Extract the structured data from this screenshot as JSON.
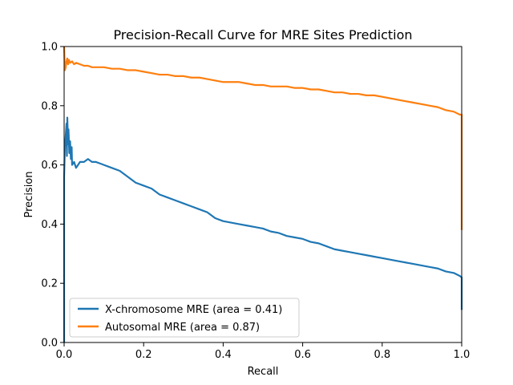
{
  "chart_data": {
    "type": "line",
    "title": "Precision-Recall Curve for MRE Sites Prediction",
    "xlabel": "Recall",
    "ylabel": "Precision",
    "xlim": [
      0,
      1
    ],
    "ylim": [
      0,
      1
    ],
    "xticks": [
      "0.0",
      "0.2",
      "0.4",
      "0.6",
      "0.8",
      "1.0"
    ],
    "yticks": [
      "0.0",
      "0.2",
      "0.4",
      "0.6",
      "0.8",
      "1.0"
    ],
    "grid": false,
    "legend_position": "lower-left",
    "series": [
      {
        "name": "X-chromosome MRE (area = 0.41)",
        "color": "#1f77b4",
        "points": [
          [
            0.0,
            0.0
          ],
          [
            0.0,
            0.56
          ],
          [
            0.002,
            0.66
          ],
          [
            0.004,
            0.7
          ],
          [
            0.006,
            0.74
          ],
          [
            0.007,
            0.63
          ],
          [
            0.008,
            0.76
          ],
          [
            0.01,
            0.67
          ],
          [
            0.011,
            0.72
          ],
          [
            0.013,
            0.64
          ],
          [
            0.015,
            0.68
          ],
          [
            0.017,
            0.62
          ],
          [
            0.019,
            0.66
          ],
          [
            0.02,
            0.6
          ],
          [
            0.025,
            0.61
          ],
          [
            0.03,
            0.59
          ],
          [
            0.035,
            0.6
          ],
          [
            0.04,
            0.61
          ],
          [
            0.05,
            0.61
          ],
          [
            0.06,
            0.62
          ],
          [
            0.07,
            0.61
          ],
          [
            0.08,
            0.61
          ],
          [
            0.09,
            0.605
          ],
          [
            0.1,
            0.6
          ],
          [
            0.12,
            0.59
          ],
          [
            0.14,
            0.58
          ],
          [
            0.16,
            0.56
          ],
          [
            0.18,
            0.54
          ],
          [
            0.2,
            0.53
          ],
          [
            0.22,
            0.52
          ],
          [
            0.24,
            0.5
          ],
          [
            0.26,
            0.49
          ],
          [
            0.28,
            0.48
          ],
          [
            0.3,
            0.47
          ],
          [
            0.32,
            0.46
          ],
          [
            0.34,
            0.45
          ],
          [
            0.36,
            0.44
          ],
          [
            0.38,
            0.42
          ],
          [
            0.4,
            0.41
          ],
          [
            0.42,
            0.405
          ],
          [
            0.44,
            0.4
          ],
          [
            0.46,
            0.395
          ],
          [
            0.48,
            0.39
          ],
          [
            0.5,
            0.385
          ],
          [
            0.52,
            0.375
          ],
          [
            0.54,
            0.37
          ],
          [
            0.56,
            0.36
          ],
          [
            0.58,
            0.355
          ],
          [
            0.6,
            0.35
          ],
          [
            0.62,
            0.34
          ],
          [
            0.64,
            0.335
          ],
          [
            0.66,
            0.325
          ],
          [
            0.68,
            0.315
          ],
          [
            0.7,
            0.31
          ],
          [
            0.72,
            0.305
          ],
          [
            0.74,
            0.3
          ],
          [
            0.76,
            0.295
          ],
          [
            0.78,
            0.29
          ],
          [
            0.8,
            0.285
          ],
          [
            0.82,
            0.28
          ],
          [
            0.84,
            0.275
          ],
          [
            0.86,
            0.27
          ],
          [
            0.88,
            0.265
          ],
          [
            0.9,
            0.26
          ],
          [
            0.92,
            0.255
          ],
          [
            0.94,
            0.25
          ],
          [
            0.96,
            0.24
          ],
          [
            0.98,
            0.235
          ],
          [
            0.995,
            0.225
          ],
          [
            1.0,
            0.22
          ],
          [
            1.0,
            0.11
          ]
        ]
      },
      {
        "name": "Autosomal MRE (area = 0.87)",
        "color": "#ff7f0e",
        "points": [
          [
            0.0,
            1.0
          ],
          [
            0.002,
            0.92
          ],
          [
            0.004,
            0.93
          ],
          [
            0.006,
            0.95
          ],
          [
            0.008,
            0.96
          ],
          [
            0.01,
            0.94
          ],
          [
            0.012,
            0.955
          ],
          [
            0.015,
            0.945
          ],
          [
            0.02,
            0.95
          ],
          [
            0.025,
            0.94
          ],
          [
            0.03,
            0.945
          ],
          [
            0.04,
            0.94
          ],
          [
            0.05,
            0.935
          ],
          [
            0.06,
            0.935
          ],
          [
            0.07,
            0.93
          ],
          [
            0.08,
            0.93
          ],
          [
            0.1,
            0.93
          ],
          [
            0.12,
            0.925
          ],
          [
            0.14,
            0.925
          ],
          [
            0.16,
            0.92
          ],
          [
            0.18,
            0.92
          ],
          [
            0.2,
            0.915
          ],
          [
            0.22,
            0.91
          ],
          [
            0.24,
            0.905
          ],
          [
            0.26,
            0.905
          ],
          [
            0.28,
            0.9
          ],
          [
            0.3,
            0.9
          ],
          [
            0.32,
            0.895
          ],
          [
            0.34,
            0.895
          ],
          [
            0.36,
            0.89
          ],
          [
            0.38,
            0.885
          ],
          [
            0.4,
            0.88
          ],
          [
            0.42,
            0.88
          ],
          [
            0.44,
            0.88
          ],
          [
            0.46,
            0.875
          ],
          [
            0.48,
            0.87
          ],
          [
            0.5,
            0.87
          ],
          [
            0.52,
            0.865
          ],
          [
            0.54,
            0.865
          ],
          [
            0.56,
            0.865
          ],
          [
            0.58,
            0.86
          ],
          [
            0.6,
            0.86
          ],
          [
            0.62,
            0.855
          ],
          [
            0.64,
            0.855
          ],
          [
            0.66,
            0.85
          ],
          [
            0.68,
            0.845
          ],
          [
            0.7,
            0.845
          ],
          [
            0.72,
            0.84
          ],
          [
            0.74,
            0.84
          ],
          [
            0.76,
            0.835
          ],
          [
            0.78,
            0.835
          ],
          [
            0.8,
            0.83
          ],
          [
            0.82,
            0.825
          ],
          [
            0.84,
            0.82
          ],
          [
            0.86,
            0.815
          ],
          [
            0.88,
            0.81
          ],
          [
            0.9,
            0.805
          ],
          [
            0.92,
            0.8
          ],
          [
            0.94,
            0.795
          ],
          [
            0.96,
            0.785
          ],
          [
            0.98,
            0.78
          ],
          [
            0.995,
            0.77
          ],
          [
            1.0,
            0.77
          ],
          [
            1.0,
            0.38
          ]
        ]
      }
    ]
  }
}
